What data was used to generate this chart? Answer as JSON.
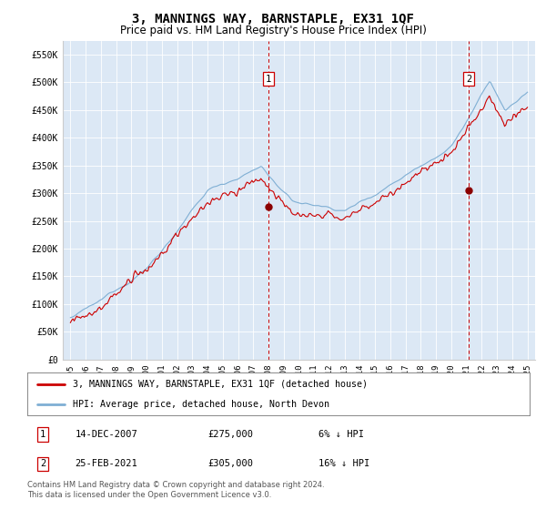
{
  "title": "3, MANNINGS WAY, BARNSTAPLE, EX31 1QF",
  "subtitle": "Price paid vs. HM Land Registry's House Price Index (HPI)",
  "legend_line1": "3, MANNINGS WAY, BARNSTAPLE, EX31 1QF (detached house)",
  "legend_line2": "HPI: Average price, detached house, North Devon",
  "sale1_date": "14-DEC-2007",
  "sale1_price": 275000,
  "sale1_year": 2008.0,
  "sale2_date": "25-FEB-2021",
  "sale2_price": 305000,
  "sale2_year": 2021.15,
  "footnote1": "Contains HM Land Registry data © Crown copyright and database right 2024.",
  "footnote2": "This data is licensed under the Open Government Licence v3.0.",
  "ylim": [
    0,
    575000
  ],
  "xlim": [
    1994.5,
    2025.5
  ],
  "yticks": [
    0,
    50000,
    100000,
    150000,
    200000,
    250000,
    300000,
    350000,
    400000,
    450000,
    500000,
    550000
  ],
  "ytick_labels": [
    "£0",
    "£50K",
    "£100K",
    "£150K",
    "£200K",
    "£250K",
    "£300K",
    "£350K",
    "£400K",
    "£450K",
    "£500K",
    "£550K"
  ],
  "xticks": [
    1995,
    1996,
    1997,
    1998,
    1999,
    2000,
    2001,
    2002,
    2003,
    2004,
    2005,
    2006,
    2007,
    2008,
    2009,
    2010,
    2011,
    2012,
    2013,
    2014,
    2015,
    2016,
    2017,
    2018,
    2019,
    2020,
    2021,
    2022,
    2023,
    2024,
    2025
  ],
  "fig_bg_color": "#ffffff",
  "plot_bg_color": "#dce8f5",
  "red_line_color": "#cc0000",
  "blue_line_color": "#7fafd4",
  "vline_color": "#cc0000",
  "box_color": "#cc0000",
  "grid_color": "#ffffff",
  "legend_border_color": "#888888",
  "sale1_marker_price": 275000,
  "sale2_marker_price": 305000
}
